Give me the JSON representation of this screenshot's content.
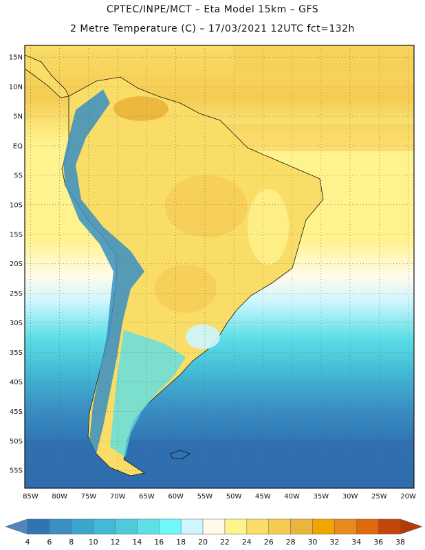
{
  "title_line1": "CPTEC/INPE/MCT –  Eta Model 15km – GFS",
  "title_line2": "2 Metre Temperature (C) – 17/03/2021 12UTC fct=132h",
  "lat_labels": [
    "15N",
    "10N",
    "5N",
    "EQ",
    "5S",
    "10S",
    "15S",
    "20S",
    "25S",
    "30S",
    "35S",
    "40S",
    "45S",
    "50S",
    "55S"
  ],
  "lon_labels": [
    "85W",
    "80W",
    "75W",
    "70W",
    "65W",
    "60W",
    "55W",
    "50W",
    "45W",
    "40W",
    "35W",
    "30W",
    "25W",
    "20W"
  ],
  "colorbar": {
    "labels": [
      "4",
      "6",
      "8",
      "10",
      "12",
      "14",
      "16",
      "18",
      "20",
      "22",
      "24",
      "26",
      "28",
      "30",
      "32",
      "34",
      "36",
      "38"
    ],
    "colors": [
      "#4f86be",
      "#2f74b3",
      "#3a8fc3",
      "#3aa5cd",
      "#43b9d5",
      "#4fcadb",
      "#5ddfe6",
      "#6ff8fa",
      "#cdf6ff",
      "#fffbea",
      "#fff38e",
      "#f9dd66",
      "#f5cb52",
      "#eab53a",
      "#f2a400",
      "#e78b1f",
      "#df6a0c",
      "#c44608",
      "#b33a06"
    ]
  },
  "map": {
    "lon_range": [
      -86,
      -19
    ],
    "lat_range": [
      -58,
      17
    ],
    "grid": true
  }
}
